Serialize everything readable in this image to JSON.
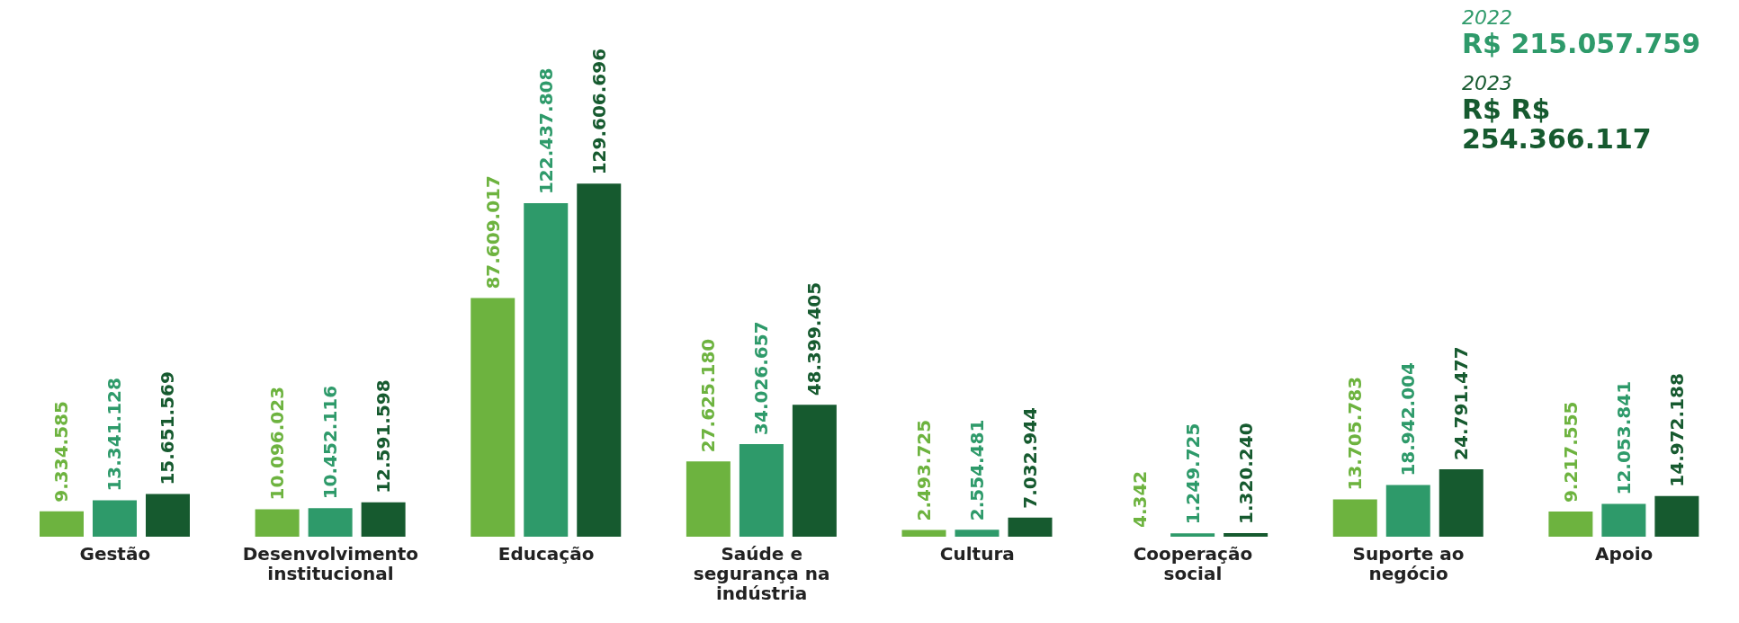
{
  "chart_data": {
    "type": "bar",
    "categories": [
      "Gestão",
      "Desenvolvimento institucional",
      "Educação",
      "Saúde e segurança na indústria",
      "Cultura",
      "Cooperação social",
      "Suporte ao negócio",
      "Apoio"
    ],
    "series": [
      {
        "color": "#6db33f",
        "values": [
          9334585,
          10096023,
          87609017,
          27625180,
          2493725,
          4342,
          13705783,
          9217555
        ],
        "value_labels": [
          "9.334.585",
          "10.096.023",
          "87.609.017",
          "27.625.180",
          "2.493.725",
          "4.342",
          "13.705.783",
          "9.217.555"
        ]
      },
      {
        "name": "2022",
        "color": "#2e9a6a",
        "values": [
          13341128,
          10452116,
          122437808,
          34026657,
          2554481,
          1249725,
          18942004,
          12053841
        ],
        "value_labels": [
          "13.341.128",
          "10.452.116",
          "122.437.808",
          "34.026.657",
          "2.554.481",
          "1.249.725",
          "18.942.004",
          "12.053.841"
        ]
      },
      {
        "name": "2023",
        "color": "#165a2f",
        "values": [
          15651569,
          12591598,
          129606696,
          48399405,
          7032944,
          1320240,
          24791477,
          14972188
        ],
        "value_labels": [
          "15.651.569",
          "12.591.598",
          "129.606.696",
          "48.399.405",
          "7.032.944",
          "1.320.240",
          "24.791.477",
          "14.972.188"
        ]
      }
    ],
    "annotations": [
      "R$ 215.057.759",
      "R$ R$ 254.366.117"
    ],
    "legend": "top right",
    "grid": false
  }
}
